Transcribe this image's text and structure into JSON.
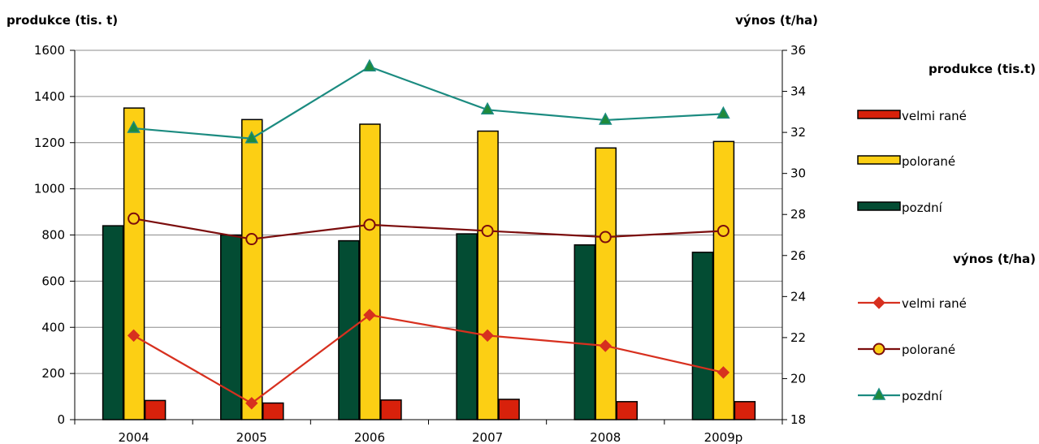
{
  "chart_data": {
    "type": "bar",
    "title": "",
    "y_left_label": "produkce (tis. t)",
    "y_right_label": "výnos (t/ha)",
    "categories": [
      "2004",
      "2005",
      "2006",
      "2007",
      "2008",
      "2009p"
    ],
    "y_left_range": [
      0,
      1600
    ],
    "y_left_ticks": [
      "0",
      "200",
      "400",
      "600",
      "800",
      "1000",
      "1200",
      "1400",
      "1600"
    ],
    "y_right_range": [
      18,
      36
    ],
    "y_right_ticks": [
      "18",
      "20",
      "22",
      "24",
      "26",
      "28",
      "30",
      "32",
      "34",
      "36"
    ],
    "grid": true,
    "bar_series": [
      {
        "name": "pozdní",
        "color": "#034c33",
        "values": [
          840,
          800,
          775,
          805,
          757,
          725
        ]
      },
      {
        "name": "polorané",
        "color": "#fccf14",
        "values": [
          1350,
          1300,
          1280,
          1250,
          1177,
          1205
        ]
      },
      {
        "name": "velmi rané",
        "color": "#d8210b",
        "values": [
          83,
          72,
          85,
          88,
          78,
          78
        ]
      }
    ],
    "line_series": [
      {
        "name": "velmi rané",
        "color": "#d7301f",
        "marker": "diamond",
        "values": [
          22.1,
          18.8,
          23.1,
          22.1,
          21.6,
          20.3
        ]
      },
      {
        "name": "polorané",
        "color": "#7b0d0d",
        "marker": "circle",
        "marker_fill": "#fccf14",
        "values": [
          27.8,
          26.8,
          27.5,
          27.2,
          26.9,
          27.2
        ]
      },
      {
        "name": "pozdní",
        "color": "#1b8b80",
        "marker": "triangle",
        "marker_fill": "#1f8a3a",
        "values": [
          32.2,
          31.7,
          35.2,
          33.1,
          32.6,
          32.9
        ]
      }
    ],
    "legend": {
      "position": "right",
      "bar_heading": "produkce (tis.t)",
      "bar_items": [
        "velmi rané",
        "polorané",
        "pozdní"
      ],
      "line_heading": "výnos (t/ha)",
      "line_items": [
        "velmi rané",
        "polorané",
        "pozdní"
      ]
    }
  }
}
